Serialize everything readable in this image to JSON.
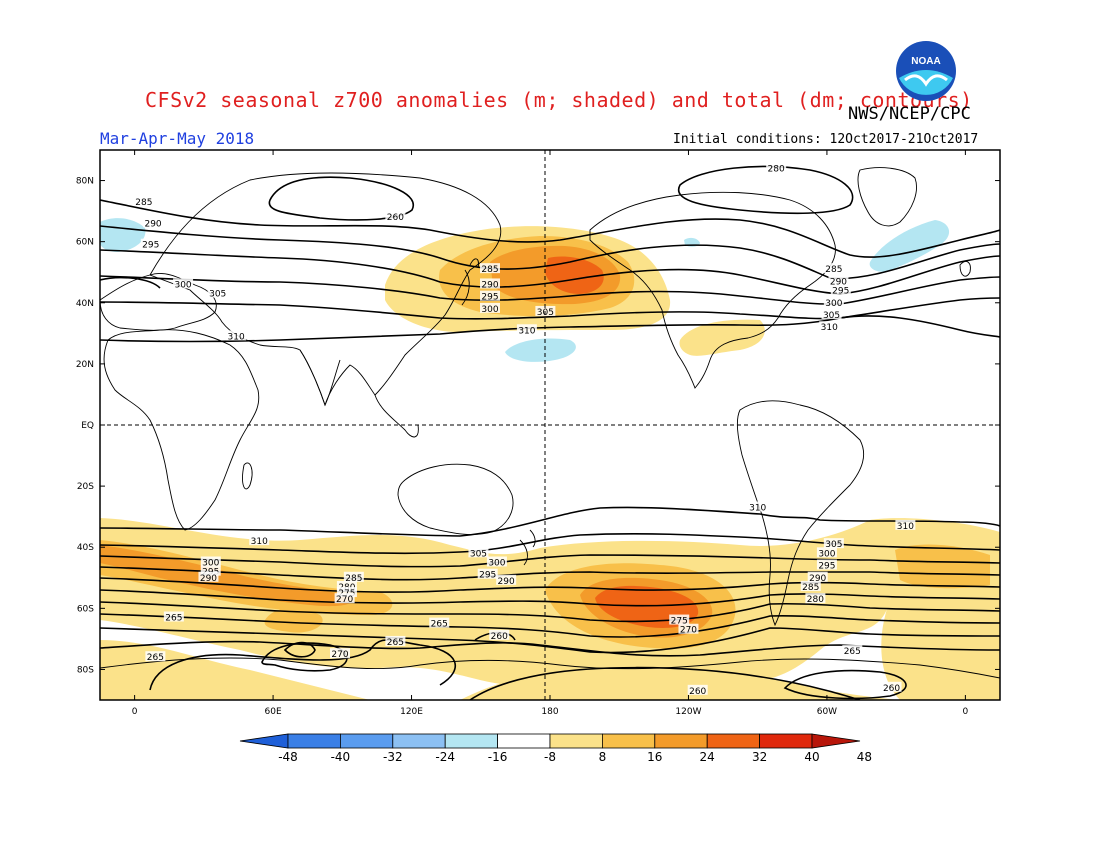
{
  "title": "CFSv2 seasonal z700 anomalies (m; shaded) and total (dm; contours)",
  "agency": "NWS/NCEP/CPC",
  "period": "Mar-Apr-May 2018",
  "initial_conditions": "Initial conditions: 12Oct2017-21Oct2017",
  "logo_text": "NOAA",
  "lat_labels": [
    "80N",
    "60N",
    "40N",
    "20N",
    "EQ",
    "20S",
    "40S",
    "60S",
    "80S"
  ],
  "lat_values": [
    80,
    60,
    40,
    20,
    0,
    -20,
    -40,
    -60,
    -80
  ],
  "lon_labels": [
    "0",
    "60E",
    "120E",
    "180",
    "120W",
    "60W",
    "0"
  ],
  "lon_values": [
    0,
    60,
    120,
    180,
    240,
    300,
    360
  ],
  "colorbar": {
    "ticks": [
      "-48",
      "-40",
      "-32",
      "-24",
      "-16",
      "-8",
      "8",
      "16",
      "24",
      "32",
      "40",
      "48"
    ],
    "colors": [
      "#1e5fd8",
      "#3a7fe6",
      "#5a9cef",
      "#8cc0f3",
      "#b4e6f2",
      "#ffffff",
      "#fbe28a",
      "#f8c04a",
      "#f39b2a",
      "#ef6415",
      "#e0280c",
      "#b8160a"
    ]
  },
  "contour_labels": [
    {
      "text": "280",
      "lon": 278,
      "lat": 84
    },
    {
      "text": "260",
      "lon": 113,
      "lat": 68
    },
    {
      "text": "285",
      "lon": 4,
      "lat": 73
    },
    {
      "text": "290",
      "lon": 8,
      "lat": 66
    },
    {
      "text": "295",
      "lon": 7,
      "lat": 59
    },
    {
      "text": "300",
      "lon": 21,
      "lat": 46
    },
    {
      "text": "305",
      "lon": 36,
      "lat": 43
    },
    {
      "text": "310",
      "lon": 44,
      "lat": 29
    },
    {
      "text": "285",
      "lon": 154,
      "lat": 51
    },
    {
      "text": "290",
      "lon": 154,
      "lat": 46
    },
    {
      "text": "295",
      "lon": 154,
      "lat": 42
    },
    {
      "text": "300",
      "lon": 154,
      "lat": 38
    },
    {
      "text": "310",
      "lon": 170,
      "lat": 31
    },
    {
      "text": "305",
      "lon": 178,
      "lat": 37
    },
    {
      "text": "285",
      "lon": 303,
      "lat": 51
    },
    {
      "text": "290",
      "lon": 305,
      "lat": 47
    },
    {
      "text": "295",
      "lon": 306,
      "lat": 44
    },
    {
      "text": "300",
      "lon": 303,
      "lat": 40
    },
    {
      "text": "305",
      "lon": 302,
      "lat": 36
    },
    {
      "text": "310",
      "lon": 301,
      "lat": 32
    },
    {
      "text": "310",
      "lon": 270,
      "lat": -27
    },
    {
      "text": "310",
      "lon": 334,
      "lat": -33
    },
    {
      "text": "310",
      "lon": 54,
      "lat": -38
    },
    {
      "text": "305",
      "lon": 149,
      "lat": -42
    },
    {
      "text": "300",
      "lon": 157,
      "lat": -45
    },
    {
      "text": "295",
      "lon": 153,
      "lat": -49
    },
    {
      "text": "290",
      "lon": 161,
      "lat": -51
    },
    {
      "text": "305",
      "lon": 303,
      "lat": -39
    },
    {
      "text": "300",
      "lon": 300,
      "lat": -42
    },
    {
      "text": "295",
      "lon": 300,
      "lat": -46
    },
    {
      "text": "290",
      "lon": 296,
      "lat": -50
    },
    {
      "text": "285",
      "lon": 293,
      "lat": -53
    },
    {
      "text": "280",
      "lon": 295,
      "lat": -57
    },
    {
      "text": "300",
      "lon": 33,
      "lat": -45
    },
    {
      "text": "295",
      "lon": 33,
      "lat": -48
    },
    {
      "text": "290",
      "lon": 32,
      "lat": -50
    },
    {
      "text": "285",
      "lon": 95,
      "lat": -50
    },
    {
      "text": "280",
      "lon": 92,
      "lat": -53
    },
    {
      "text": "275",
      "lon": 92,
      "lat": -55
    },
    {
      "text": "270",
      "lon": 91,
      "lat": -57
    },
    {
      "text": "265",
      "lon": 17,
      "lat": -63
    },
    {
      "text": "265",
      "lon": 132,
      "lat": -65
    },
    {
      "text": "260",
      "lon": 158,
      "lat": -69
    },
    {
      "text": "275",
      "lon": 236,
      "lat": -64
    },
    {
      "text": "270",
      "lon": 240,
      "lat": -67
    },
    {
      "text": "265",
      "lon": 9,
      "lat": -76
    },
    {
      "text": "265",
      "lon": 113,
      "lat": -71
    },
    {
      "text": "270",
      "lon": 89,
      "lat": -75
    },
    {
      "text": "265",
      "lon": 311,
      "lat": -74
    },
    {
      "text": "260",
      "lon": 244,
      "lat": -87
    },
    {
      "text": "260",
      "lon": 328,
      "lat": -86
    }
  ]
}
